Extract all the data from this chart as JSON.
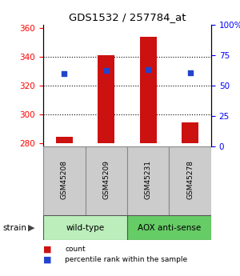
{
  "title": "GDS1532 / 257784_at",
  "samples": [
    "GSM45208",
    "GSM45209",
    "GSM45231",
    "GSM45278"
  ],
  "bar_baseline": 280,
  "bar_tops": [
    284.5,
    341.0,
    354.0,
    294.5
  ],
  "percentile_values": [
    328.5,
    330.5,
    331.0,
    329.0
  ],
  "ylim_left": [
    278,
    362
  ],
  "ylim_right": [
    0,
    100
  ],
  "yticks_left": [
    280,
    300,
    320,
    340,
    360
  ],
  "yticks_right": [
    0,
    25,
    50,
    75,
    100
  ],
  "ytick_labels_right": [
    "0",
    "25",
    "50",
    "75",
    "100%"
  ],
  "bar_color": "#cc1111",
  "blue_color": "#2244cc",
  "groups": [
    {
      "label": "wild-type",
      "start": 0,
      "end": 2,
      "color": "#bbeebb"
    },
    {
      "label": "AOX anti-sense",
      "start": 2,
      "end": 4,
      "color": "#66cc66"
    }
  ],
  "sample_box_color": "#cccccc",
  "legend_items": [
    {
      "color": "#cc1111",
      "label": "count"
    },
    {
      "color": "#2244cc",
      "label": "percentile rank within the sample"
    }
  ],
  "strain_label": "strain"
}
